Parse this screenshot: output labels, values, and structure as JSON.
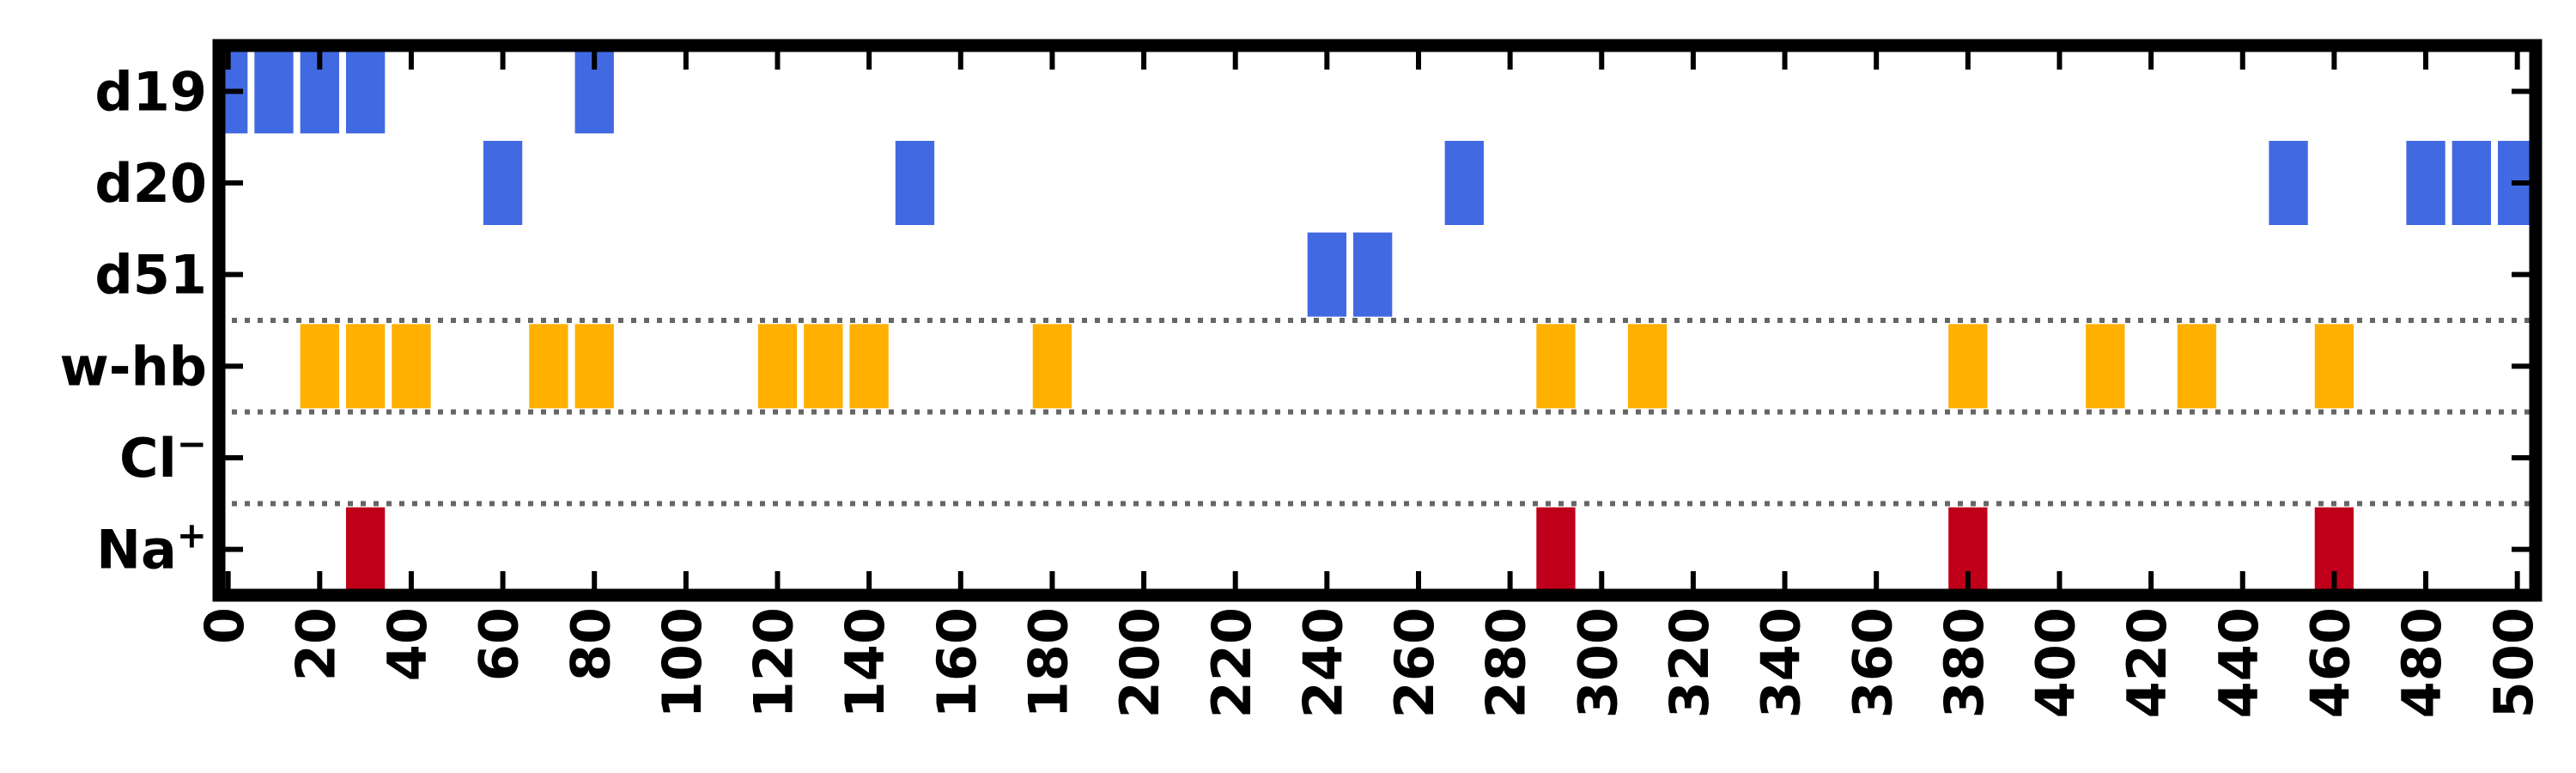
{
  "chart_data": {
    "type": "heatmap",
    "title": "",
    "xlabel": "",
    "ylabel": "",
    "xlim": [
      -2,
      504
    ],
    "x_ticks": [
      0,
      20,
      40,
      60,
      80,
      100,
      120,
      140,
      160,
      180,
      200,
      220,
      240,
      260,
      280,
      300,
      320,
      340,
      360,
      380,
      400,
      420,
      440,
      460,
      480,
      500
    ],
    "x_tick_labels": [
      "0",
      "20",
      "40",
      "60",
      "80",
      "100",
      "120",
      "140",
      "160",
      "180",
      "200",
      "220",
      "240",
      "260",
      "280",
      "300",
      "320",
      "340",
      "360",
      "380",
      "400",
      "420",
      "440",
      "460",
      "480",
      "500"
    ],
    "bin_width": 10,
    "categories": [
      "d19",
      "d20",
      "d51",
      "w-hb",
      "Cl−",
      "Na⁺"
    ],
    "category_label_base": [
      "d19",
      "d20",
      "d51",
      "w-hb",
      "Cl",
      "Na"
    ],
    "category_label_sup": [
      "",
      "",
      "",
      "",
      "−",
      "+"
    ],
    "separators_after": [
      "d51",
      "w-hb",
      "Cl−"
    ],
    "series": [
      {
        "category": "d19",
        "color": "#4169e1",
        "x": [
          0,
          10,
          20,
          30,
          80
        ]
      },
      {
        "category": "d20",
        "color": "#4169e1",
        "x": [
          60,
          150,
          270,
          450,
          480,
          490,
          500
        ]
      },
      {
        "category": "d51",
        "color": "#4169e1",
        "x": [
          240,
          250
        ]
      },
      {
        "category": "w-hb",
        "color": "#ffb000",
        "x": [
          20,
          30,
          40,
          70,
          80,
          120,
          130,
          140,
          180,
          290,
          310,
          380,
          410,
          430,
          460
        ]
      },
      {
        "category": "Cl−",
        "color": "#000000",
        "x": []
      },
      {
        "category": "Na⁺",
        "color": "#c0001a",
        "x": [
          30,
          290,
          380,
          460
        ]
      }
    ],
    "grid": false,
    "legend": "none"
  }
}
